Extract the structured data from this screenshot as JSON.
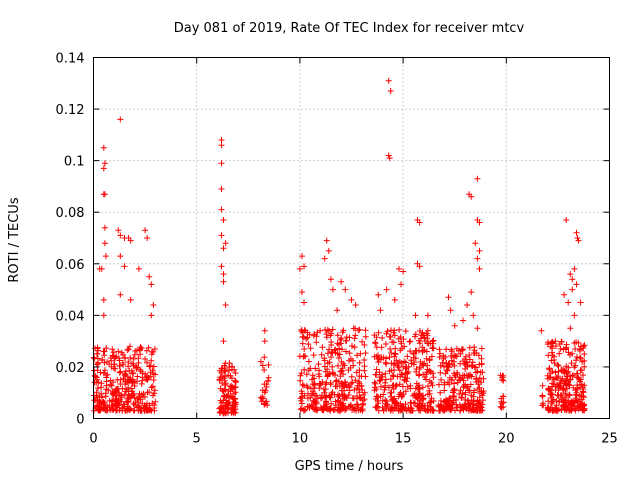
{
  "chart_data": {
    "type": "scatter",
    "title": "Day 081 of 2019, Rate Of TEC Index for receiver mtcv",
    "xlabel": "GPS time / hours",
    "ylabel": "ROTI / TECUs",
    "xlim": [
      0,
      25
    ],
    "ylim": [
      0,
      0.14
    ],
    "xticks": [
      0,
      5,
      10,
      15,
      20,
      25
    ],
    "xtick_labels": [
      "0",
      "5",
      "10",
      "15",
      "20",
      "25"
    ],
    "yticks": [
      0,
      0.02,
      0.04,
      0.06,
      0.08,
      0.1,
      0.12,
      0.14
    ],
    "ytick_labels": [
      "0",
      "0.02",
      "0.04",
      "0.06",
      "0.08",
      "0.1",
      "0.12",
      "0.14"
    ],
    "grid": true,
    "marker": "+",
    "color": "#ff0000",
    "clusters": [
      {
        "x_start": 0.0,
        "x_end": 3.0,
        "y_base_min": 0.003,
        "y_base_max": 0.028,
        "count": 340
      },
      {
        "x_start": 6.1,
        "x_end": 6.9,
        "y_base_min": 0.002,
        "y_base_max": 0.022,
        "count": 120
      },
      {
        "x_start": 8.1,
        "x_end": 8.5,
        "y_base_min": 0.005,
        "y_base_max": 0.025,
        "count": 25
      },
      {
        "x_start": 10.0,
        "x_end": 13.2,
        "y_base_min": 0.003,
        "y_base_max": 0.035,
        "count": 340
      },
      {
        "x_start": 13.6,
        "x_end": 16.5,
        "y_base_min": 0.003,
        "y_base_max": 0.035,
        "count": 340
      },
      {
        "x_start": 16.7,
        "x_end": 18.9,
        "y_base_min": 0.003,
        "y_base_max": 0.028,
        "count": 260
      },
      {
        "x_start": 19.7,
        "x_end": 19.9,
        "y_base_min": 0.004,
        "y_base_max": 0.018,
        "count": 15
      },
      {
        "x_start": 21.7,
        "x_end": 21.8,
        "y_base_min": 0.005,
        "y_base_max": 0.015,
        "count": 6
      },
      {
        "x_start": 22.0,
        "x_end": 23.8,
        "y_base_min": 0.003,
        "y_base_max": 0.03,
        "count": 260
      }
    ],
    "outliers": [
      {
        "x": 0.5,
        "y": 0.105
      },
      {
        "x": 0.5,
        "y": 0.097
      },
      {
        "x": 0.55,
        "y": 0.099
      },
      {
        "x": 0.5,
        "y": 0.087
      },
      {
        "x": 0.55,
        "y": 0.087
      },
      {
        "x": 0.55,
        "y": 0.074
      },
      {
        "x": 0.55,
        "y": 0.068
      },
      {
        "x": 0.6,
        "y": 0.063
      },
      {
        "x": 0.3,
        "y": 0.058
      },
      {
        "x": 0.4,
        "y": 0.058
      },
      {
        "x": 0.5,
        "y": 0.046
      },
      {
        "x": 0.5,
        "y": 0.04
      },
      {
        "x": 1.3,
        "y": 0.116
      },
      {
        "x": 1.2,
        "y": 0.073
      },
      {
        "x": 1.3,
        "y": 0.071
      },
      {
        "x": 1.5,
        "y": 0.07
      },
      {
        "x": 1.7,
        "y": 0.07
      },
      {
        "x": 1.8,
        "y": 0.069
      },
      {
        "x": 1.3,
        "y": 0.063
      },
      {
        "x": 1.5,
        "y": 0.059
      },
      {
        "x": 1.3,
        "y": 0.048
      },
      {
        "x": 1.8,
        "y": 0.046
      },
      {
        "x": 2.5,
        "y": 0.073
      },
      {
        "x": 2.6,
        "y": 0.07
      },
      {
        "x": 2.2,
        "y": 0.058
      },
      {
        "x": 2.7,
        "y": 0.055
      },
      {
        "x": 2.8,
        "y": 0.052
      },
      {
        "x": 2.9,
        "y": 0.044
      },
      {
        "x": 2.8,
        "y": 0.04
      },
      {
        "x": 6.2,
        "y": 0.108
      },
      {
        "x": 6.2,
        "y": 0.106
      },
      {
        "x": 6.2,
        "y": 0.099
      },
      {
        "x": 6.2,
        "y": 0.089
      },
      {
        "x": 6.2,
        "y": 0.081
      },
      {
        "x": 6.3,
        "y": 0.077
      },
      {
        "x": 6.2,
        "y": 0.071
      },
      {
        "x": 6.4,
        "y": 0.068
      },
      {
        "x": 6.3,
        "y": 0.066
      },
      {
        "x": 6.2,
        "y": 0.059
      },
      {
        "x": 6.3,
        "y": 0.056
      },
      {
        "x": 6.3,
        "y": 0.053
      },
      {
        "x": 6.4,
        "y": 0.044
      },
      {
        "x": 6.3,
        "y": 0.03
      },
      {
        "x": 8.3,
        "y": 0.034
      },
      {
        "x": 8.3,
        "y": 0.03
      },
      {
        "x": 10.1,
        "y": 0.063
      },
      {
        "x": 10.2,
        "y": 0.059
      },
      {
        "x": 10.0,
        "y": 0.058
      },
      {
        "x": 10.1,
        "y": 0.049
      },
      {
        "x": 10.2,
        "y": 0.045
      },
      {
        "x": 11.3,
        "y": 0.069
      },
      {
        "x": 11.4,
        "y": 0.065
      },
      {
        "x": 11.2,
        "y": 0.062
      },
      {
        "x": 11.5,
        "y": 0.054
      },
      {
        "x": 11.6,
        "y": 0.05
      },
      {
        "x": 12.0,
        "y": 0.053
      },
      {
        "x": 12.2,
        "y": 0.05
      },
      {
        "x": 12.5,
        "y": 0.046
      },
      {
        "x": 12.7,
        "y": 0.044
      },
      {
        "x": 11.8,
        "y": 0.042
      },
      {
        "x": 14.3,
        "y": 0.131
      },
      {
        "x": 14.4,
        "y": 0.127
      },
      {
        "x": 14.3,
        "y": 0.102
      },
      {
        "x": 14.35,
        "y": 0.101
      },
      {
        "x": 13.8,
        "y": 0.048
      },
      {
        "x": 14.2,
        "y": 0.05
      },
      {
        "x": 14.8,
        "y": 0.058
      },
      {
        "x": 14.9,
        "y": 0.052
      },
      {
        "x": 15.0,
        "y": 0.057
      },
      {
        "x": 14.6,
        "y": 0.046
      },
      {
        "x": 15.7,
        "y": 0.077
      },
      {
        "x": 15.8,
        "y": 0.076
      },
      {
        "x": 15.7,
        "y": 0.06
      },
      {
        "x": 15.8,
        "y": 0.059
      },
      {
        "x": 15.6,
        "y": 0.04
      },
      {
        "x": 16.2,
        "y": 0.04
      },
      {
        "x": 13.9,
        "y": 0.042
      },
      {
        "x": 17.2,
        "y": 0.047
      },
      {
        "x": 17.3,
        "y": 0.042
      },
      {
        "x": 17.5,
        "y": 0.036
      },
      {
        "x": 18.2,
        "y": 0.087
      },
      {
        "x": 18.3,
        "y": 0.086
      },
      {
        "x": 18.6,
        "y": 0.093
      },
      {
        "x": 18.6,
        "y": 0.077
      },
      {
        "x": 18.7,
        "y": 0.076
      },
      {
        "x": 18.5,
        "y": 0.068
      },
      {
        "x": 18.7,
        "y": 0.065
      },
      {
        "x": 18.6,
        "y": 0.062
      },
      {
        "x": 18.7,
        "y": 0.058
      },
      {
        "x": 18.3,
        "y": 0.049
      },
      {
        "x": 18.1,
        "y": 0.044
      },
      {
        "x": 18.4,
        "y": 0.04
      },
      {
        "x": 18.6,
        "y": 0.035
      },
      {
        "x": 17.9,
        "y": 0.038
      },
      {
        "x": 21.7,
        "y": 0.034
      },
      {
        "x": 22.9,
        "y": 0.077
      },
      {
        "x": 23.4,
        "y": 0.072
      },
      {
        "x": 23.5,
        "y": 0.069
      },
      {
        "x": 23.45,
        "y": 0.07
      },
      {
        "x": 23.3,
        "y": 0.058
      },
      {
        "x": 23.4,
        "y": 0.052
      },
      {
        "x": 23.1,
        "y": 0.056
      },
      {
        "x": 23.2,
        "y": 0.054
      },
      {
        "x": 23.2,
        "y": 0.05
      },
      {
        "x": 22.8,
        "y": 0.048
      },
      {
        "x": 23.6,
        "y": 0.045
      },
      {
        "x": 23.0,
        "y": 0.045
      },
      {
        "x": 23.3,
        "y": 0.04
      },
      {
        "x": 23.1,
        "y": 0.035
      }
    ]
  }
}
